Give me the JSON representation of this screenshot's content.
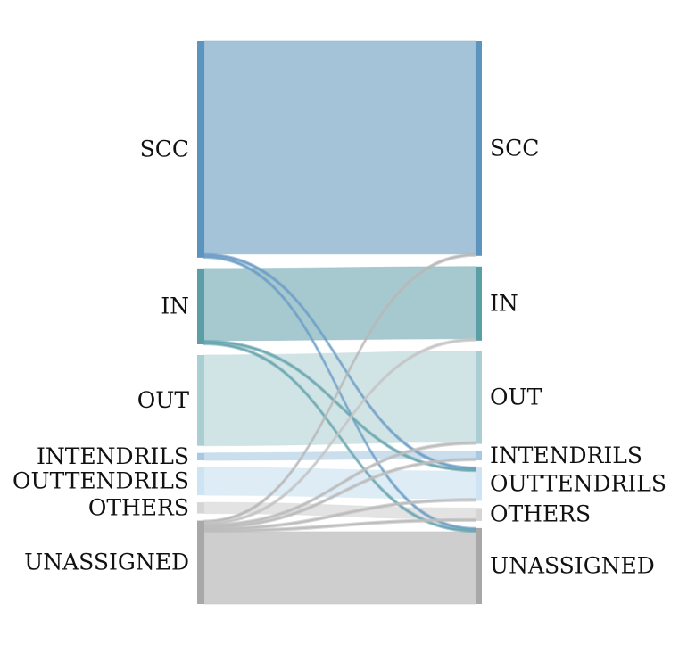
{
  "chart_data": {
    "type": "sankey",
    "left_nodes": [
      {
        "id": "SCC",
        "label": "SCC",
        "color": "#5b95bd"
      },
      {
        "id": "IN",
        "label": "IN",
        "color": "#5b9ea6"
      },
      {
        "id": "OUT",
        "label": "OUT",
        "color": "#a9cfd3"
      },
      {
        "id": "INTENDRILS",
        "label": "INTENDRILS",
        "color": "#a9c9e3"
      },
      {
        "id": "OUTTENDRILS",
        "label": "OUTTENDRILS",
        "color": "#cfe4f2"
      },
      {
        "id": "OTHERS",
        "label": "OTHERS",
        "color": "#d5d5d5"
      },
      {
        "id": "UNASSIGNED",
        "label": "UNASSIGNED",
        "color": "#a8a8a8"
      }
    ],
    "right_nodes": [
      {
        "id": "SCC",
        "label": "SCC",
        "color": "#5b95bd"
      },
      {
        "id": "IN",
        "label": "IN",
        "color": "#5b9ea6"
      },
      {
        "id": "OUT",
        "label": "OUT",
        "color": "#a9cfd3"
      },
      {
        "id": "INTENDRILS",
        "label": "INTENDRILS",
        "color": "#a9c9e3"
      },
      {
        "id": "OUTTENDRILS",
        "label": "OUTTENDRILS",
        "color": "#cfe4f2"
      },
      {
        "id": "OTHERS",
        "label": "OTHERS",
        "color": "#d5d5d5"
      },
      {
        "id": "UNASSIGNED",
        "label": "UNASSIGNED",
        "color": "#a8a8a8"
      }
    ],
    "flows": [
      {
        "source": "SCC",
        "target": "SCC",
        "value": 230,
        "color": "#94b7d1"
      },
      {
        "source": "SCC",
        "target": "OUTTENDRILS",
        "value": 2,
        "color": "#6f9fc6"
      },
      {
        "source": "SCC",
        "target": "UNASSIGNED",
        "value": 2,
        "color": "#6f9fc6"
      },
      {
        "source": "IN",
        "target": "IN",
        "value": 78,
        "color": "#96bfc8"
      },
      {
        "source": "IN",
        "target": "OUTTENDRILS",
        "value": 2,
        "color": "#6aa6b0"
      },
      {
        "source": "IN",
        "target": "UNASSIGNED",
        "value": 2,
        "color": "#6aa6b0"
      },
      {
        "source": "OUT",
        "target": "OUT",
        "value": 98,
        "color": "#c9dfe1"
      },
      {
        "source": "INTENDRILS",
        "target": "INTENDRILS",
        "value": 8,
        "color": "#c2d8ea"
      },
      {
        "source": "OUTTENDRILS",
        "target": "OUTTENDRILS",
        "value": 30,
        "color": "#d8e9f4"
      },
      {
        "source": "OTHERS",
        "target": "OTHERS",
        "value": 12,
        "color": "#dedede"
      },
      {
        "source": "UNASSIGNED",
        "target": "SCC",
        "value": 2,
        "color": "#b8b8b8"
      },
      {
        "source": "UNASSIGNED",
        "target": "IN",
        "value": 2,
        "color": "#c4c4c4"
      },
      {
        "source": "UNASSIGNED",
        "target": "OUT",
        "value": 2,
        "color": "#bdbdbd"
      },
      {
        "source": "UNASSIGNED",
        "target": "INTENDRILS",
        "value": 2,
        "color": "#bdbdbd"
      },
      {
        "source": "UNASSIGNED",
        "target": "OUTTENDRILS",
        "value": 2,
        "color": "#bdbdbd"
      },
      {
        "source": "UNASSIGNED",
        "target": "OTHERS",
        "value": 2,
        "color": "#bdbdbd"
      },
      {
        "source": "UNASSIGNED",
        "target": "UNASSIGNED",
        "value": 78,
        "color": "#c6c6c6"
      }
    ]
  }
}
